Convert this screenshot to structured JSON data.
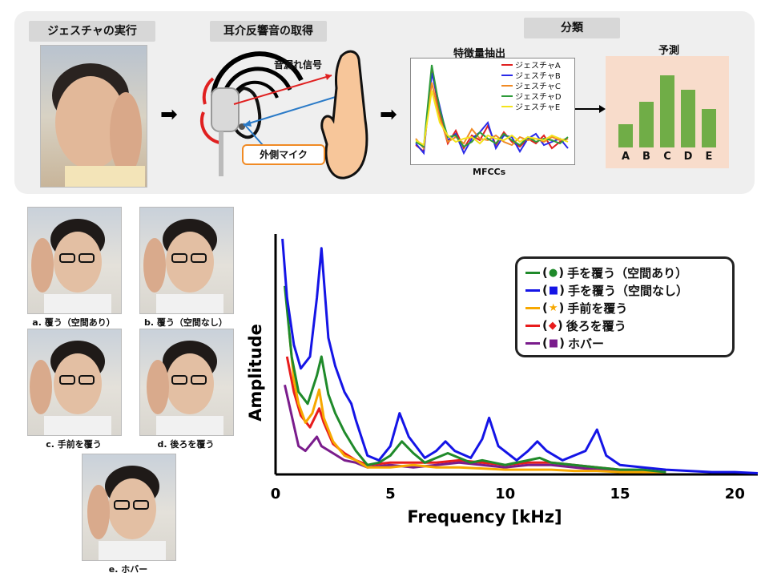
{
  "pipeline": {
    "stage1": {
      "label": "ジェスチャの実行"
    },
    "stage2": {
      "label": "耳介反響音の取得",
      "leak_signal": "音漏れ信号",
      "mic_label": "外側マイク"
    },
    "stage3": {
      "label": "分類",
      "feature_title": "特徴量抽出",
      "feature_xlabel": "MFCCs",
      "feature_legend": [
        {
          "name": "ジェスチャA",
          "color": "#e02020"
        },
        {
          "name": "ジェスチャB",
          "color": "#2a2ae8"
        },
        {
          "name": "ジェスチャC",
          "color": "#f08a24"
        },
        {
          "name": "ジェスチャD",
          "color": "#2e9b3a"
        },
        {
          "name": "ジェスチャE",
          "color": "#f4e41c"
        }
      ],
      "prediction_title": "予測",
      "prediction_bars": [
        {
          "category": "A",
          "value": 0.29
        },
        {
          "category": "B",
          "value": 0.57
        },
        {
          "category": "C",
          "value": 0.9
        },
        {
          "category": "D",
          "value": 0.72
        },
        {
          "category": "E",
          "value": 0.48
        }
      ],
      "prediction_color": "#70ad47"
    }
  },
  "gestures": [
    {
      "id": "a",
      "caption": "a. 覆う（空間あり）",
      "hand": "cover"
    },
    {
      "id": "b",
      "caption": "b. 覆う（空間なし）",
      "hand": "cover"
    },
    {
      "id": "c",
      "caption": "c. 手前を覆う",
      "hand": "front"
    },
    {
      "id": "d",
      "caption": "d. 後ろを覆う",
      "hand": "back"
    },
    {
      "id": "e",
      "caption": "e. ホバー",
      "hand": "hover"
    }
  ],
  "chart_data": {
    "type": "line",
    "xlabel": "Frequency [kHz]",
    "ylabel": "Amplitude",
    "xlim": [
      0,
      21
    ],
    "ylim": [
      0,
      1
    ],
    "xticks": [
      0,
      5,
      10,
      15,
      20
    ],
    "legend_position": "top-right",
    "series": [
      {
        "name": "手を覆う（空間あり）",
        "marker": "●",
        "color": "#1f8a2a",
        "points": [
          [
            0.4,
            0.8
          ],
          [
            0.7,
            0.5
          ],
          [
            1.0,
            0.35
          ],
          [
            1.4,
            0.3
          ],
          [
            1.8,
            0.42
          ],
          [
            2.0,
            0.5
          ],
          [
            2.3,
            0.34
          ],
          [
            2.6,
            0.26
          ],
          [
            3.0,
            0.18
          ],
          [
            3.5,
            0.1
          ],
          [
            4.0,
            0.04
          ],
          [
            4.5,
            0.05
          ],
          [
            5.0,
            0.08
          ],
          [
            5.5,
            0.14
          ],
          [
            6.0,
            0.09
          ],
          [
            6.5,
            0.05
          ],
          [
            7.0,
            0.07
          ],
          [
            7.5,
            0.09
          ],
          [
            8.0,
            0.07
          ],
          [
            8.5,
            0.05
          ],
          [
            9.0,
            0.06
          ],
          [
            9.5,
            0.05
          ],
          [
            10.0,
            0.04
          ],
          [
            11.0,
            0.06
          ],
          [
            11.5,
            0.07
          ],
          [
            12.0,
            0.05
          ],
          [
            13.0,
            0.04
          ],
          [
            14.0,
            0.03
          ],
          [
            15.0,
            0.02
          ],
          [
            16.0,
            0.02
          ],
          [
            17.0,
            0.01
          ]
        ]
      },
      {
        "name": "手を覆う（空間なし）",
        "marker": "■",
        "color": "#1414e6",
        "points": [
          [
            0.3,
            1.0
          ],
          [
            0.5,
            0.75
          ],
          [
            0.8,
            0.55
          ],
          [
            1.1,
            0.45
          ],
          [
            1.5,
            0.5
          ],
          [
            1.8,
            0.75
          ],
          [
            2.0,
            0.96
          ],
          [
            2.3,
            0.58
          ],
          [
            2.6,
            0.46
          ],
          [
            3.0,
            0.35
          ],
          [
            3.3,
            0.3
          ],
          [
            3.5,
            0.23
          ],
          [
            4.0,
            0.08
          ],
          [
            4.5,
            0.06
          ],
          [
            5.0,
            0.12
          ],
          [
            5.4,
            0.26
          ],
          [
            5.8,
            0.16
          ],
          [
            6.5,
            0.07
          ],
          [
            7.0,
            0.1
          ],
          [
            7.4,
            0.14
          ],
          [
            7.8,
            0.1
          ],
          [
            8.5,
            0.07
          ],
          [
            9.0,
            0.15
          ],
          [
            9.3,
            0.24
          ],
          [
            9.7,
            0.12
          ],
          [
            10.5,
            0.06
          ],
          [
            11.0,
            0.1
          ],
          [
            11.4,
            0.14
          ],
          [
            11.8,
            0.1
          ],
          [
            12.5,
            0.06
          ],
          [
            13.5,
            0.1
          ],
          [
            14.0,
            0.19
          ],
          [
            14.4,
            0.08
          ],
          [
            15.0,
            0.04
          ],
          [
            16.0,
            0.03
          ],
          [
            17.0,
            0.02
          ],
          [
            18.0,
            0.015
          ],
          [
            19.0,
            0.01
          ],
          [
            20.0,
            0.01
          ],
          [
            21.0,
            0.005
          ]
        ]
      },
      {
        "name": "手前を覆う",
        "marker": "★",
        "color": "#f7a800",
        "points": [
          [
            0.6,
            0.6
          ],
          [
            0.8,
            0.4
          ],
          [
            1.0,
            0.3
          ],
          [
            1.3,
            0.22
          ],
          [
            1.6,
            0.26
          ],
          [
            1.9,
            0.36
          ],
          [
            2.1,
            0.24
          ],
          [
            2.5,
            0.14
          ],
          [
            3.0,
            0.08
          ],
          [
            3.5,
            0.06
          ],
          [
            4.0,
            0.03
          ],
          [
            5.0,
            0.03
          ],
          [
            6.0,
            0.04
          ],
          [
            7.0,
            0.03
          ],
          [
            8.0,
            0.03
          ],
          [
            9.0,
            0.025
          ],
          [
            10.0,
            0.02
          ],
          [
            11.0,
            0.02
          ],
          [
            12.0,
            0.02
          ],
          [
            13.0,
            0.015
          ],
          [
            14.0,
            0.015
          ],
          [
            15.0,
            0.01
          ],
          [
            16.0,
            0.01
          ],
          [
            17.0,
            0.01
          ]
        ]
      },
      {
        "name": "後ろを覆う",
        "marker": "◆",
        "color": "#e81c1c",
        "points": [
          [
            0.5,
            0.5
          ],
          [
            0.8,
            0.35
          ],
          [
            1.1,
            0.25
          ],
          [
            1.5,
            0.2
          ],
          [
            1.9,
            0.28
          ],
          [
            2.1,
            0.22
          ],
          [
            2.5,
            0.13
          ],
          [
            3.0,
            0.09
          ],
          [
            3.5,
            0.06
          ],
          [
            4.0,
            0.04
          ],
          [
            5.0,
            0.05
          ],
          [
            6.0,
            0.05
          ],
          [
            7.0,
            0.05
          ],
          [
            8.0,
            0.06
          ],
          [
            9.0,
            0.05
          ],
          [
            10.0,
            0.04
          ],
          [
            11.0,
            0.05
          ],
          [
            12.0,
            0.05
          ],
          [
            13.0,
            0.04
          ],
          [
            14.0,
            0.03
          ],
          [
            15.0,
            0.02
          ],
          [
            16.0,
            0.015
          ],
          [
            17.0,
            0.01
          ]
        ]
      },
      {
        "name": "ホバー",
        "marker": "■",
        "color": "#7a1c8c",
        "points": [
          [
            0.4,
            0.38
          ],
          [
            0.7,
            0.25
          ],
          [
            1.0,
            0.12
          ],
          [
            1.3,
            0.1
          ],
          [
            1.8,
            0.16
          ],
          [
            2.0,
            0.12
          ],
          [
            2.5,
            0.09
          ],
          [
            3.0,
            0.06
          ],
          [
            3.5,
            0.05
          ],
          [
            4.0,
            0.03
          ],
          [
            5.0,
            0.04
          ],
          [
            6.0,
            0.03
          ],
          [
            7.0,
            0.04
          ],
          [
            8.0,
            0.05
          ],
          [
            9.0,
            0.04
          ],
          [
            10.0,
            0.03
          ],
          [
            11.0,
            0.04
          ],
          [
            12.0,
            0.04
          ],
          [
            13.0,
            0.03
          ],
          [
            14.0,
            0.02
          ],
          [
            15.0,
            0.015
          ],
          [
            16.0,
            0.01
          ],
          [
            17.0,
            0.01
          ]
        ]
      }
    ]
  }
}
